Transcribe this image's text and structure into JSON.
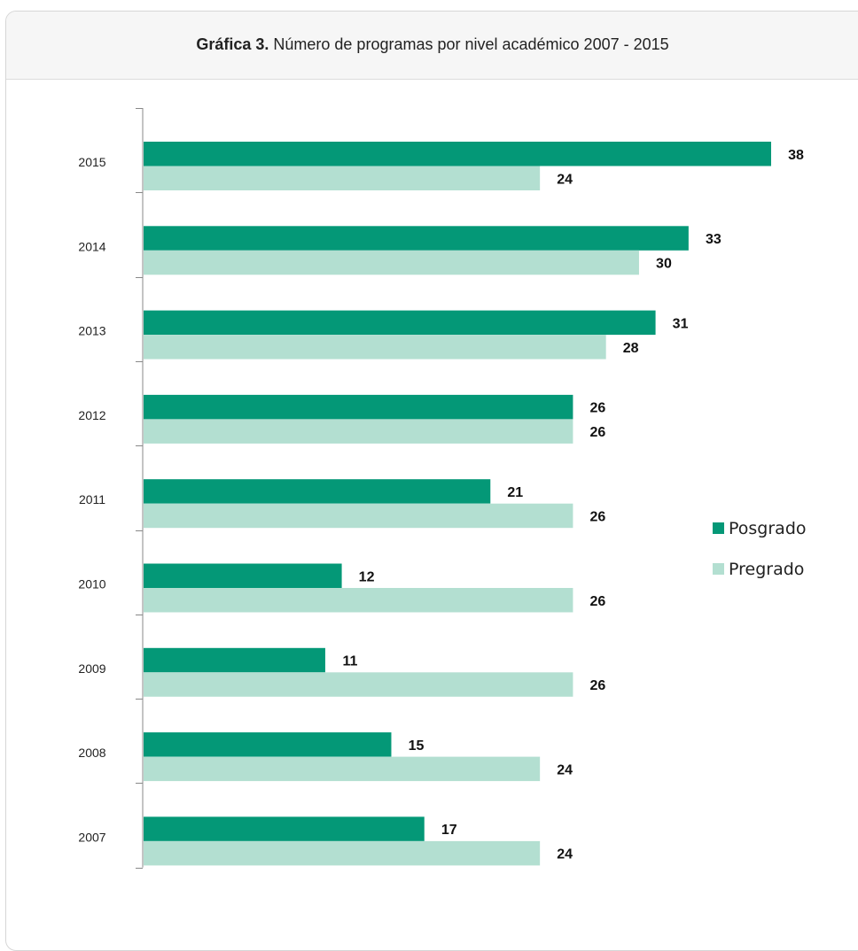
{
  "header": {
    "title_bold": "Gráfica 3.",
    "title_rest": " Número de programas por nivel académico 2007 - 2015"
  },
  "chart_data": {
    "type": "bar",
    "orientation": "horizontal",
    "title": "Gráfica 3. Número de programas por nivel académico 2007 - 2015",
    "categories": [
      "2015",
      "2014",
      "2013",
      "2012",
      "2011",
      "2010",
      "2009",
      "2008",
      "2007"
    ],
    "series": [
      {
        "name": "Posgrado",
        "color": "#049877",
        "values": [
          38,
          33,
          31,
          26,
          21,
          12,
          11,
          15,
          17
        ]
      },
      {
        "name": "Pregrado",
        "color": "#b3dfd1",
        "values": [
          24,
          30,
          28,
          26,
          26,
          26,
          26,
          24,
          24
        ]
      }
    ],
    "xlim": [
      0,
      38
    ],
    "grid": false,
    "legend_position": "right",
    "data_labels": true
  }
}
